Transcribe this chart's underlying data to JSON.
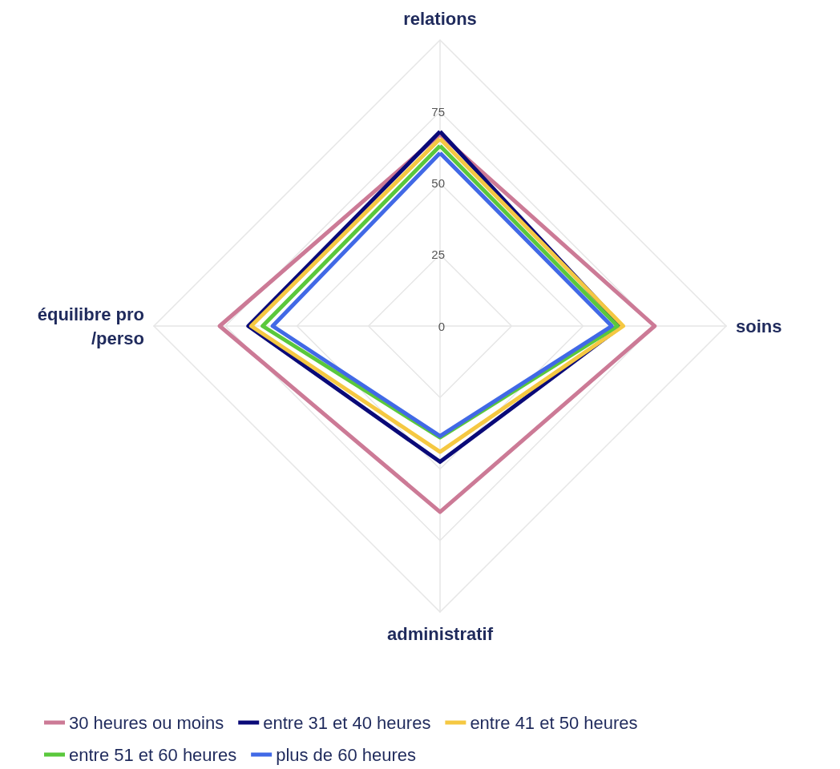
{
  "chart_data": {
    "type": "radar",
    "categories": [
      "relations",
      "soins",
      "administratif",
      "équilibre pro\n/perso"
    ],
    "ylim": [
      0,
      100
    ],
    "yticks": [
      0,
      25,
      50,
      75
    ],
    "grid": true,
    "legend": "bottom",
    "marker": "none",
    "line_style": "solid",
    "series": [
      {
        "name": "30 heures ou moins",
        "color": "#cc7a96",
        "values": [
          67,
          75,
          65,
          77
        ]
      },
      {
        "name": "entre 31 et 40 heures",
        "color": "#0a0a78",
        "values": [
          68,
          63.5,
          47.5,
          67
        ]
      },
      {
        "name": "entre 41 et 50 heures",
        "color": "#f5c842",
        "values": [
          65.5,
          64,
          44,
          66
        ]
      },
      {
        "name": "entre 51 et 60 heures",
        "color": "#5ac83c",
        "values": [
          63,
          62,
          39,
          62
        ]
      },
      {
        "name": "plus de 60 heures",
        "color": "#4169e6",
        "values": [
          60.5,
          60,
          38.5,
          58.5
        ]
      }
    ]
  }
}
